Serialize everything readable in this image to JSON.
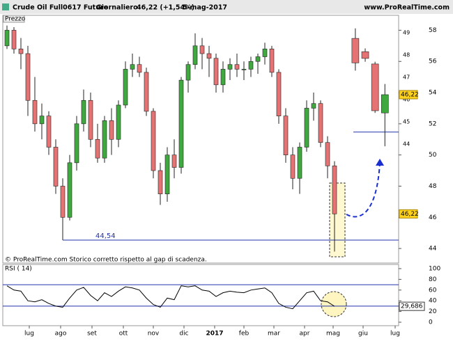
{
  "header": {
    "instrument": "Crude Oil Full0617 Future",
    "period": "Giornaliero",
    "quote": "46,22 (+1,54%)",
    "date": "5-mag-2017",
    "site": "www.ProRealTime.com"
  },
  "footer": "© ProRealTime.com  Storico corretto rispetto al gap di scadenza.",
  "chart_data": [
    {
      "type": "candlestick",
      "title": "Prezzo",
      "open": [
        57.0,
        58.0,
        56.8,
        56.5,
        53.5,
        52.0,
        52.5,
        50.5,
        48.0,
        46.0,
        49.5,
        52.0,
        53.5,
        51.0,
        49.8,
        52.2,
        51.0,
        53.2,
        55.5,
        55.8,
        55.3,
        52.8,
        49.0,
        47.5,
        50.0,
        49.2,
        54.8,
        55.8,
        57.0,
        56.5,
        56.2,
        54.5,
        55.5,
        55.8,
        55.5,
        55.5,
        56.0,
        56.3,
        56.8,
        55.3,
        52.5,
        50.0,
        48.5,
        50.5,
        53.0,
        53.3,
        50.8,
        49.3
      ],
      "high": [
        58.3,
        58.2,
        57.5,
        57.0,
        55.0,
        53.3,
        52.8,
        51.0,
        48.5,
        50.0,
        52.5,
        54.2,
        54.0,
        52.0,
        52.5,
        53.0,
        53.5,
        56.0,
        56.5,
        56.3,
        55.6,
        53.0,
        49.5,
        50.5,
        51.0,
        55.0,
        56.0,
        57.8,
        57.5,
        57.0,
        56.5,
        56.0,
        56.2,
        56.5,
        56.0,
        56.3,
        56.5,
        57.2,
        57.0,
        55.5,
        53.0,
        50.5,
        50.8,
        53.5,
        54.0,
        53.5,
        51.2,
        49.6
      ],
      "low": [
        56.8,
        56.5,
        55.5,
        52.5,
        51.5,
        51.0,
        50.0,
        47.5,
        44.54,
        45.8,
        49.0,
        51.5,
        50.5,
        49.5,
        49.5,
        50.0,
        50.5,
        53.0,
        55.0,
        55.0,
        52.5,
        48.5,
        46.8,
        47.0,
        48.5,
        48.8,
        54.0,
        55.5,
        55.5,
        55.0,
        54.0,
        54.0,
        54.8,
        55.0,
        54.8,
        55.0,
        55.2,
        55.8,
        55.0,
        52.0,
        49.5,
        47.8,
        47.5,
        50.2,
        52.2,
        50.5,
        48.5,
        43.8
      ],
      "close": [
        58.0,
        56.8,
        56.5,
        53.5,
        52.0,
        52.5,
        50.5,
        48.0,
        46.0,
        49.5,
        52.0,
        53.5,
        51.0,
        49.8,
        52.2,
        51.0,
        53.2,
        55.5,
        55.8,
        55.3,
        52.8,
        49.0,
        47.5,
        50.0,
        49.2,
        54.8,
        55.8,
        57.0,
        56.5,
        56.2,
        54.5,
        55.5,
        55.8,
        55.5,
        55.5,
        56.0,
        56.3,
        56.8,
        55.3,
        52.5,
        50.0,
        48.5,
        50.5,
        53.0,
        53.3,
        50.8,
        49.3,
        46.22
      ],
      "up_color": "#3fa83f",
      "down_color": "#e57373",
      "xlim": [
        -0.5,
        56.2
      ],
      "xticks": [
        {
          "value": 3.2,
          "label": "lug"
        },
        {
          "value": 7.7,
          "label": "ago"
        },
        {
          "value": 12.2,
          "label": "set"
        },
        {
          "value": 16.7,
          "label": "ott"
        },
        {
          "value": 21.0,
          "label": "nov"
        },
        {
          "value": 25.4,
          "label": "dic"
        },
        {
          "value": 29.8,
          "label": "2017"
        },
        {
          "value": 34.0,
          "label": "feb"
        },
        {
          "value": 38.3,
          "label": "mar"
        },
        {
          "value": 42.7,
          "label": "apr"
        },
        {
          "value": 46.8,
          "label": "mag"
        },
        {
          "value": 51.1,
          "label": "giu"
        },
        {
          "value": 55.7,
          "label": "lug"
        }
      ],
      "ylim": [
        43.2,
        58.6
      ],
      "yticks": [
        44,
        46,
        48,
        50,
        52,
        54,
        56,
        58
      ],
      "support": {
        "value": 44.54,
        "label": "44,54"
      },
      "last_value": {
        "value": 46.22,
        "label": "46,22"
      }
    },
    {
      "type": "candlestick",
      "open": [
        48.75,
        48.15,
        47.6,
        45.4
      ],
      "high": [
        49.2,
        48.3,
        47.7,
        46.7
      ],
      "low": [
        47.3,
        47.7,
        45.4,
        43.9
      ],
      "close": [
        47.65,
        47.85,
        45.5,
        46.22
      ],
      "xlim": [
        -0.7,
        3.9
      ],
      "ylim": [
        43.75,
        49.38
      ],
      "yticks": [
        44,
        45,
        46,
        47,
        48,
        49
      ],
      "last_value": {
        "value": 46.22,
        "label": "46,22"
      }
    },
    {
      "type": "line",
      "title": "RSI ( 14)",
      "color": "#000000",
      "values": [
        68,
        60,
        58,
        40,
        38,
        42,
        35,
        30,
        28,
        45,
        60,
        65,
        50,
        40,
        55,
        48,
        58,
        66,
        64,
        60,
        45,
        33,
        28,
        45,
        42,
        68,
        66,
        68,
        60,
        58,
        48,
        55,
        58,
        56,
        55,
        60,
        62,
        64,
        55,
        35,
        28,
        25,
        40,
        55,
        58,
        40,
        38,
        29.686
      ],
      "levels": [
        30,
        70
      ],
      "ylim": [
        -6.5,
        107.8
      ],
      "yticks": [
        0,
        20,
        40,
        60,
        80,
        100
      ],
      "last_value": {
        "value": 29.686,
        "label": "29,686"
      }
    }
  ]
}
